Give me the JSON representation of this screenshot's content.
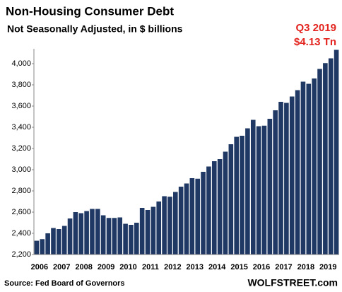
{
  "chart_data": {
    "type": "bar",
    "title": "Non-Housing  Consumer  Debt",
    "subtitle": "Not Seasonally Adjusted, in $ billions",
    "annotations": [
      "Q3 2019",
      "$4.13 Tn"
    ],
    "source": "Source: Fed Board of Governors",
    "credit": "WOLFSTREET.com",
    "color": "#1f3864",
    "annotation_color": "#e3231d",
    "grid": false,
    "categories": [
      "2006",
      null,
      null,
      null,
      "2007",
      null,
      null,
      null,
      "2008",
      null,
      null,
      null,
      "2009",
      null,
      null,
      null,
      "2010",
      null,
      null,
      null,
      "2011",
      null,
      null,
      null,
      "2012",
      null,
      null,
      null,
      "2013",
      null,
      null,
      null,
      "2014",
      null,
      null,
      null,
      "2015",
      null,
      null,
      null,
      "2016",
      null,
      null,
      null,
      "2017",
      null,
      null,
      null,
      "2018",
      null,
      null,
      null,
      "2019",
      null,
      null
    ],
    "values": [
      2330,
      2345,
      2400,
      2450,
      2440,
      2470,
      2540,
      2600,
      2590,
      2610,
      2630,
      2630,
      2570,
      2545,
      2545,
      2550,
      2490,
      2480,
      2500,
      2640,
      2620,
      2650,
      2700,
      2750,
      2745,
      2790,
      2840,
      2870,
      2920,
      2915,
      2980,
      3030,
      3080,
      3100,
      3170,
      3240,
      3310,
      3320,
      3390,
      3470,
      3410,
      3415,
      3480,
      3560,
      3640,
      3630,
      3690,
      3750,
      3830,
      3810,
      3860,
      3950,
      4005,
      4050,
      4130
    ],
    "ylim": [
      2200,
      4140
    ],
    "yticks": [
      {
        "value": 2200,
        "label": "2,200"
      },
      {
        "value": 2400,
        "label": "2,400"
      },
      {
        "value": 2600,
        "label": "2,600"
      },
      {
        "value": 2800,
        "label": "2,800"
      },
      {
        "value": 3000,
        "label": "3,000"
      },
      {
        "value": 3200,
        "label": "3,200"
      },
      {
        "value": 3400,
        "label": "3,400"
      },
      {
        "value": 3600,
        "label": "3,600"
      },
      {
        "value": 3800,
        "label": "3,800"
      },
      {
        "value": 4000,
        "label": "4,000"
      }
    ]
  }
}
